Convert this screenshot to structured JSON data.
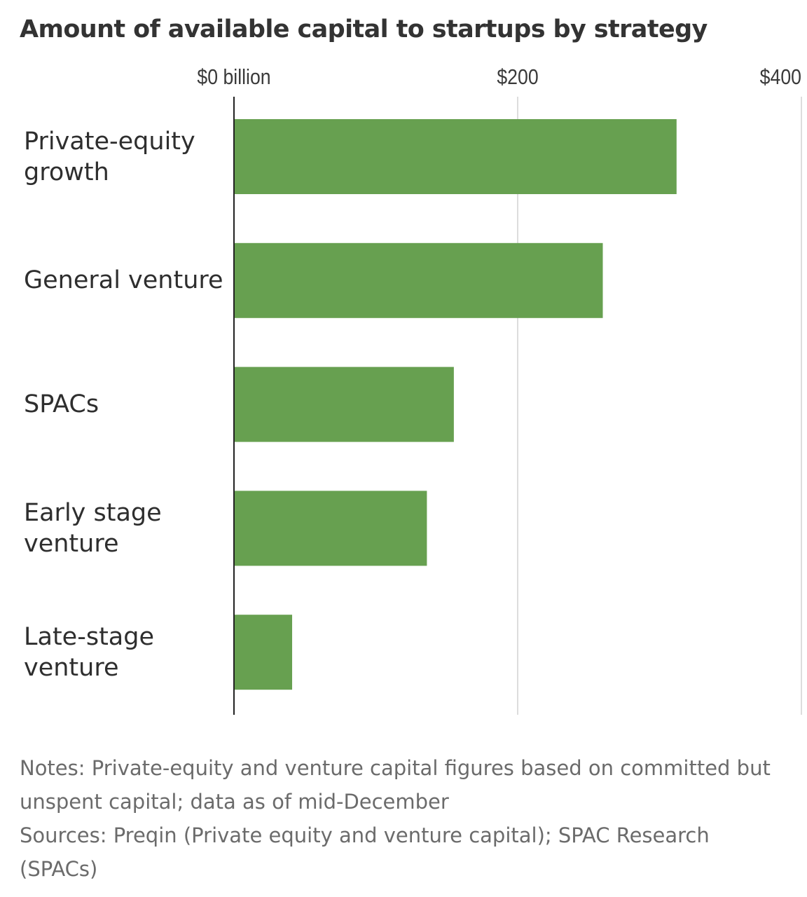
{
  "chart_data": {
    "type": "bar",
    "orientation": "horizontal",
    "title": "Amount of available capital to startups by strategy",
    "categories": [
      [
        "Private-equity",
        "growth"
      ],
      [
        "General venture"
      ],
      [
        "SPACs"
      ],
      [
        "Early stage",
        "venture"
      ],
      [
        "Late-stage",
        "venture"
      ]
    ],
    "values": [
      312,
      260,
      155,
      136,
      41
    ],
    "unit": "$ billion",
    "xlim": [
      0,
      402
    ],
    "ticks": [
      0,
      200,
      400
    ],
    "tick_labels": [
      "$0 billion",
      "$200",
      "$400"
    ],
    "bar_color": "#67a050",
    "grid": true
  },
  "notes": "Notes: Private-equity and venture capital figures based on committed but unspent capital; data as of mid-December",
  "sources": "Sources: Preqin (Private equity and venture capital); SPAC Research (SPACs)"
}
